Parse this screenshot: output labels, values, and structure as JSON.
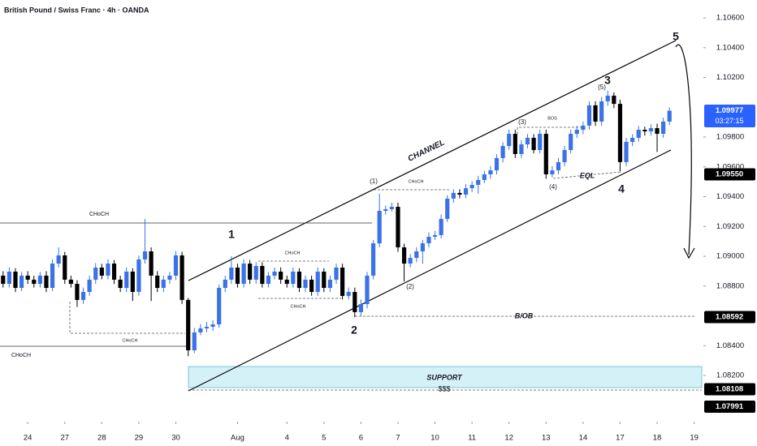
{
  "chart_data": {
    "type": "candlestick",
    "title": "British Pound / Swiss Franc · 4h · OANDA",
    "up_color": "#3b72e6",
    "down_color": "#000000",
    "xlim": [
      -0.5,
      113.5
    ],
    "xticks": [
      {
        "value": 4,
        "label": "24"
      },
      {
        "value": 10,
        "label": "27"
      },
      {
        "value": 16,
        "label": "28"
      },
      {
        "value": 22,
        "label": "29"
      },
      {
        "value": 28,
        "label": "30"
      },
      {
        "value": 38,
        "label": "Aug"
      },
      {
        "value": 46,
        "label": "4"
      },
      {
        "value": 52,
        "label": "5"
      },
      {
        "value": 58,
        "label": "6"
      },
      {
        "value": 64,
        "label": "7"
      },
      {
        "value": 70,
        "label": "10"
      },
      {
        "value": 76,
        "label": "11"
      },
      {
        "value": 82,
        "label": "12"
      },
      {
        "value": 88,
        "label": "13"
      },
      {
        "value": 94,
        "label": "14"
      },
      {
        "value": 100,
        "label": "17"
      },
      {
        "value": 106,
        "label": "18"
      },
      {
        "value": 112,
        "label": "19"
      }
    ],
    "ylim": [
      1.0789,
      1.1072
    ],
    "yticks": [
      {
        "value": 1.106,
        "label": "1.10600"
      },
      {
        "value": 1.104,
        "label": "1.10400"
      },
      {
        "value": 1.102,
        "label": "1.10200"
      },
      {
        "value": 1.098,
        "label": "1.09800"
      },
      {
        "value": 1.096,
        "label": "1.09600"
      },
      {
        "value": 1.094,
        "label": "1.09400"
      },
      {
        "value": 1.092,
        "label": "1.09200"
      },
      {
        "value": 1.09,
        "label": "1.09000"
      },
      {
        "value": 1.088,
        "label": "1.08800"
      },
      {
        "value": 1.084,
        "label": "1.08400"
      },
      {
        "value": 1.082,
        "label": "1.08200"
      }
    ],
    "price_labels": [
      {
        "value": 1.09977,
        "label": "1.09977",
        "color": "#2962ff",
        "countdown": "03:27:15"
      },
      {
        "value": 1.0955,
        "label": "1.09550",
        "color": "#000000"
      },
      {
        "value": 1.08592,
        "label": "1.08592",
        "color": "#000000"
      },
      {
        "value": 1.08108,
        "label": "1.08108",
        "color": "#000000"
      },
      {
        "value": 1.07991,
        "label": "1.07991",
        "color": "#000000"
      }
    ],
    "annotations": [
      "CHoCH",
      "CHoCH",
      "CHoCH",
      "CHoCH",
      "CHoCH",
      "CHoCH",
      "CHANNEL",
      "1",
      "2",
      "3",
      "4",
      "5",
      "(1)",
      "(2)",
      "(3)",
      "(4)",
      "(5)",
      "BOS",
      "EQL",
      "B/OB",
      "SUPPORT",
      "$$$"
    ],
    "candles": [
      [
        1.0887,
        1.089,
        1.0879,
        1.08815
      ],
      [
        1.08815,
        1.08925,
        1.0879,
        1.08897
      ],
      [
        1.08897,
        1.0892,
        1.0876,
        1.08788
      ],
      [
        1.08788,
        1.08895,
        1.08765,
        1.0887
      ],
      [
        1.0887,
        1.089,
        1.08815,
        1.08843
      ],
      [
        1.08843,
        1.0887,
        1.0879,
        1.08815
      ],
      [
        1.08815,
        1.08895,
        1.0879,
        1.0887
      ],
      [
        1.0887,
        1.089,
        1.0876,
        1.08788
      ],
      [
        1.08788,
        1.0898,
        1.08765,
        1.08951
      ],
      [
        1.08951,
        1.0906,
        1.08925,
        1.09006
      ],
      [
        1.09006,
        1.0903,
        1.08815,
        1.08843
      ],
      [
        1.08843,
        1.0887,
        1.0879,
        1.08815
      ],
      [
        1.08815,
        1.0884,
        1.0866,
        1.08707
      ],
      [
        1.08707,
        1.0879,
        1.0868,
        1.08761
      ],
      [
        1.08761,
        1.0887,
        1.08735,
        1.08843
      ],
      [
        1.08843,
        1.08955,
        1.08815,
        1.08924
      ],
      [
        1.08924,
        1.0895,
        1.08845,
        1.0887
      ],
      [
        1.0887,
        1.0898,
        1.08845,
        1.08951
      ],
      [
        1.08951,
        1.08975,
        1.08815,
        1.08843
      ],
      [
        1.08843,
        1.0887,
        1.0876,
        1.08788
      ],
      [
        1.08788,
        1.08925,
        1.0876,
        1.08897
      ],
      [
        1.08897,
        1.0892,
        1.087,
        1.08761
      ],
      [
        1.08761,
        1.09005,
        1.08735,
        1.08979
      ],
      [
        1.08979,
        1.0925,
        1.0895,
        1.09033
      ],
      [
        1.09033,
        1.0906,
        1.087,
        1.0887
      ],
      [
        1.0887,
        1.089,
        1.0876,
        1.08788
      ],
      [
        1.08788,
        1.0887,
        1.0876,
        1.08843
      ],
      [
        1.08843,
        1.08895,
        1.08815,
        1.0887
      ],
      [
        1.0887,
        1.09035,
        1.0884,
        1.09006
      ],
      [
        1.09006,
        1.0903,
        1.0868,
        1.08707
      ],
      [
        1.08707,
        1.0872,
        1.0833,
        1.08369
      ],
      [
        1.08369,
        1.0852,
        1.0835,
        1.08489
      ],
      [
        1.08489,
        1.08545,
        1.0847,
        1.08516
      ],
      [
        1.08516,
        1.0856,
        1.0849,
        1.08527
      ],
      [
        1.08527,
        1.0857,
        1.085,
        1.08543
      ],
      [
        1.08543,
        1.0881,
        1.0852,
        1.08788
      ],
      [
        1.08788,
        1.0887,
        1.0876,
        1.08843
      ],
      [
        1.08843,
        1.09,
        1.08815,
        1.08924
      ],
      [
        1.08924,
        1.0895,
        1.0879,
        1.08815
      ],
      [
        1.08815,
        1.0898,
        1.0879,
        1.08951
      ],
      [
        1.08951,
        1.08975,
        1.08815,
        1.08843
      ],
      [
        1.08843,
        1.0896,
        1.08815,
        1.08935
      ],
      [
        1.08935,
        1.0896,
        1.0879,
        1.08815
      ],
      [
        1.08815,
        1.08895,
        1.0879,
        1.0887
      ],
      [
        1.0887,
        1.08925,
        1.08845,
        1.08897
      ],
      [
        1.08897,
        1.08925,
        1.08815,
        1.08843
      ],
      [
        1.08843,
        1.0887,
        1.0879,
        1.08815
      ],
      [
        1.08815,
        1.08925,
        1.0879,
        1.08897
      ],
      [
        1.08897,
        1.0892,
        1.0876,
        1.08788
      ],
      [
        1.08788,
        1.0887,
        1.0876,
        1.08843
      ],
      [
        1.08843,
        1.0887,
        1.08735,
        1.08761
      ],
      [
        1.08761,
        1.08925,
        1.08735,
        1.08897
      ],
      [
        1.08897,
        1.0892,
        1.0876,
        1.08788
      ],
      [
        1.08788,
        1.0887,
        1.0876,
        1.08843
      ],
      [
        1.08843,
        1.0895,
        1.08815,
        1.08924
      ],
      [
        1.08924,
        1.0895,
        1.0871,
        1.08734
      ],
      [
        1.08734,
        1.0879,
        1.0871,
        1.08761
      ],
      [
        1.08761,
        1.0879,
        1.08592,
        1.08625
      ],
      [
        1.08625,
        1.0871,
        1.086,
        1.08679
      ],
      [
        1.08679,
        1.08895,
        1.0865,
        1.0887
      ],
      [
        1.0887,
        1.0911,
        1.08845,
        1.09087
      ],
      [
        1.09087,
        1.0942,
        1.0906,
        1.09305
      ],
      [
        1.09305,
        1.0934,
        1.0928,
        1.09316
      ],
      [
        1.09316,
        1.0936,
        1.093,
        1.09332
      ],
      [
        1.09332,
        1.0936,
        1.0903,
        1.0906
      ],
      [
        1.0906,
        1.09085,
        1.0883,
        1.08951
      ],
      [
        1.08951,
        1.09015,
        1.08925,
        1.08989
      ],
      [
        1.08989,
        1.0906,
        1.0896,
        1.09033
      ],
      [
        1.09033,
        1.0911,
        1.0895,
        1.09087
      ],
      [
        1.09087,
        1.0916,
        1.0906,
        1.09131
      ],
      [
        1.09131,
        1.0917,
        1.0911,
        1.09142
      ],
      [
        1.09142,
        1.0928,
        1.0912,
        1.09251
      ],
      [
        1.09251,
        1.0941,
        1.0923,
        1.09387
      ],
      [
        1.09387,
        1.0945,
        1.0936,
        1.09425
      ],
      [
        1.09425,
        1.0945,
        1.0939,
        1.09414
      ],
      [
        1.09414,
        1.09485,
        1.0939,
        1.09457
      ],
      [
        1.09457,
        1.09505,
        1.0943,
        1.09479
      ],
      [
        1.09479,
        1.0954,
        1.0942,
        1.09512
      ],
      [
        1.09512,
        1.09575,
        1.0949,
        1.0955
      ],
      [
        1.0955,
        1.09605,
        1.0952,
        1.09577
      ],
      [
        1.09577,
        1.09685,
        1.0955,
        1.09659
      ],
      [
        1.09659,
        1.09765,
        1.0963,
        1.0974
      ],
      [
        1.0974,
        1.0985,
        1.09715,
        1.09822
      ],
      [
        1.09822,
        1.0985,
        1.0966,
        1.09686
      ],
      [
        1.09686,
        1.0978,
        1.0966,
        1.09751
      ],
      [
        1.09751,
        1.0982,
        1.09725,
        1.09795
      ],
      [
        1.09795,
        1.0982,
        1.0969,
        1.09713
      ],
      [
        1.09713,
        1.0985,
        1.0969,
        1.09822
      ],
      [
        1.09822,
        1.0985,
        1.0952,
        1.0955
      ],
      [
        1.0955,
        1.09605,
        1.0953,
        1.09577
      ],
      [
        1.09577,
        1.0966,
        1.0955,
        1.09632
      ],
      [
        1.09632,
        1.0974,
        1.09605,
        1.09713
      ],
      [
        1.09713,
        1.0985,
        1.0969,
        1.09822
      ],
      [
        1.09822,
        1.09875,
        1.09795,
        1.09849
      ],
      [
        1.09849,
        1.09905,
        1.0982,
        1.09877
      ],
      [
        1.09877,
        1.1004,
        1.0985,
        1.10013
      ],
      [
        1.10013,
        1.1004,
        1.09875,
        1.09904
      ],
      [
        1.09904,
        1.1007,
        1.09875,
        1.1004
      ],
      [
        1.1004,
        1.1011,
        1.1001,
        1.10078
      ],
      [
        1.10078,
        1.101,
        1.09995,
        1.10023
      ],
      [
        1.10023,
        1.1005,
        1.0957,
        1.09632
      ],
      [
        1.09632,
        1.09795,
        1.09605,
        1.09768
      ],
      [
        1.09768,
        1.0982,
        1.0974,
        1.09795
      ],
      [
        1.09795,
        1.09875,
        1.0977,
        1.09849
      ],
      [
        1.09849,
        1.0987,
        1.0981,
        1.09838
      ],
      [
        1.09838,
        1.09885,
        1.0981,
        1.0986
      ],
      [
        1.0986,
        1.0989,
        1.097,
        1.09822
      ],
      [
        1.09822,
        1.0993,
        1.09795,
        1.09904
      ],
      [
        1.09904,
        1.1,
        1.0988,
        1.09977
      ]
    ]
  }
}
